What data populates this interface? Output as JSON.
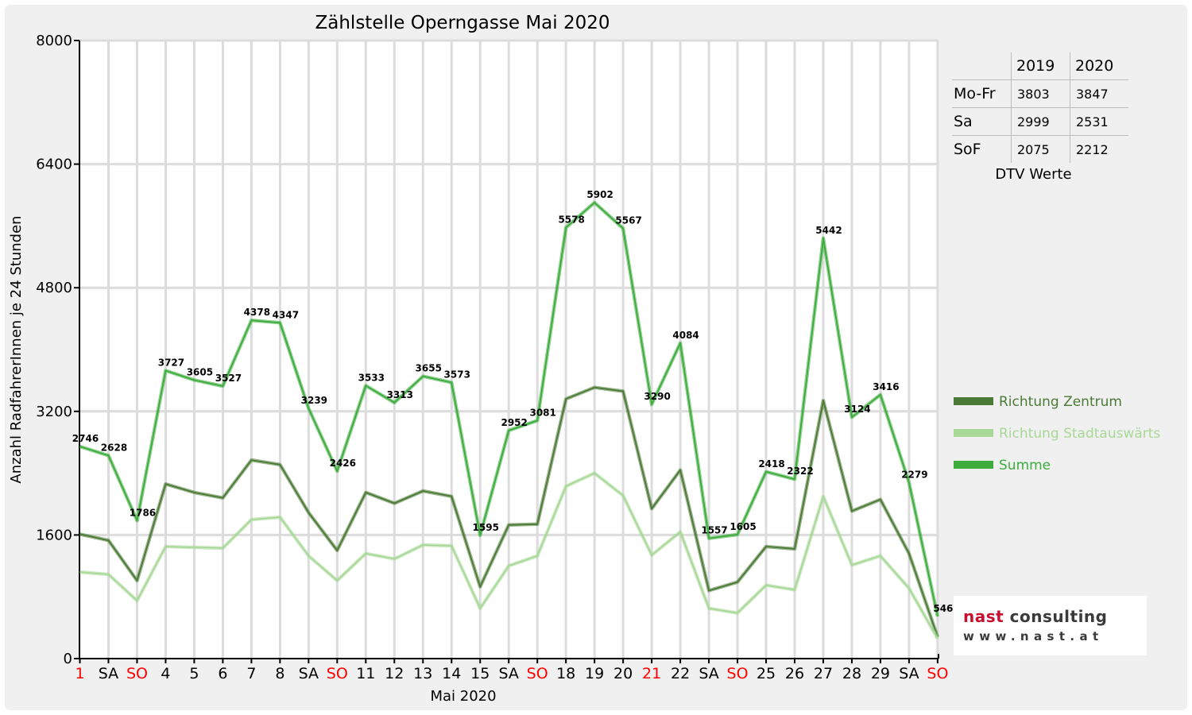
{
  "chart_data": {
    "type": "line",
    "title": "Zählstelle Operngasse Mai 2020",
    "xlabel": "Mai 2020",
    "ylabel": "Anzahl RadfahrerInnen je 24 Stunden",
    "ylim": [
      0,
      8000
    ],
    "yticks": [
      0,
      1600,
      3200,
      4800,
      6400,
      8000
    ],
    "grid": true,
    "legend_position": "right",
    "categories": [
      "1",
      "SA",
      "SO",
      "4",
      "5",
      "6",
      "7",
      "8",
      "SA",
      "SO",
      "11",
      "12",
      "13",
      "14",
      "15",
      "SA",
      "SO",
      "18",
      "19",
      "20",
      "21",
      "22",
      "SA",
      "SO",
      "25",
      "26",
      "27",
      "28",
      "29",
      "SA",
      "SO"
    ],
    "category_colors": [
      "#ff0000",
      "#000000",
      "#ff0000",
      "#000000",
      "#000000",
      "#000000",
      "#000000",
      "#000000",
      "#000000",
      "#ff0000",
      "#000000",
      "#000000",
      "#000000",
      "#000000",
      "#000000",
      "#000000",
      "#ff0000",
      "#000000",
      "#000000",
      "#000000",
      "#ff0000",
      "#000000",
      "#000000",
      "#ff0000",
      "#000000",
      "#000000",
      "#000000",
      "#000000",
      "#000000",
      "#000000",
      "#ff0000"
    ],
    "series": [
      {
        "name": "Richtung Zentrum",
        "color": "#4a7a35",
        "values": [
          1610,
          1530,
          1010,
          2260,
          2150,
          2080,
          2570,
          2510,
          1890,
          1400,
          2150,
          2010,
          2170,
          2100,
          930,
          1730,
          1740,
          3360,
          3510,
          3460,
          1940,
          2440,
          880,
          990,
          1450,
          1420,
          3340,
          1910,
          2060,
          1360,
          280
        ]
      },
      {
        "name": "Richtung Stadtauswärts",
        "color": "#a8d898",
        "values": [
          1120,
          1090,
          750,
          1450,
          1440,
          1430,
          1800,
          1830,
          1330,
          1010,
          1360,
          1290,
          1470,
          1460,
          650,
          1200,
          1330,
          2230,
          2400,
          2110,
          1340,
          1640,
          650,
          590,
          950,
          890,
          2100,
          1210,
          1330,
          910,
          260
        ]
      },
      {
        "name": "Summe",
        "color": "#3cac3c",
        "values": [
          2746,
          2628,
          1786,
          3727,
          3605,
          3527,
          4378,
          4347,
          3239,
          2426,
          3533,
          3313,
          3655,
          3573,
          1595,
          2952,
          3081,
          5578,
          5902,
          5567,
          3290,
          4084,
          1557,
          1605,
          2418,
          2322,
          5442,
          3124,
          3416,
          2279,
          546
        ]
      }
    ],
    "data_labels": [
      "2746",
      "2628",
      "1786",
      "3727",
      "3605",
      "3527",
      "4378",
      "4347",
      "3239",
      "2426",
      "3533",
      "3313",
      "3655",
      "3573",
      "1595",
      "2952",
      "3081",
      "5578",
      "5902",
      "5567",
      "3290",
      "4084",
      "1557",
      "1605",
      "2418",
      "2322",
      "5442",
      "3124",
      "3416",
      "2279",
      "546"
    ]
  },
  "dtv_table": {
    "years": [
      "2019",
      "2020"
    ],
    "rows": [
      {
        "label": "Mo-Fr",
        "values": [
          "3803",
          "3847"
        ]
      },
      {
        "label": "Sa",
        "values": [
          "2999",
          "2531"
        ]
      },
      {
        "label": "SoF",
        "values": [
          "2075",
          "2212"
        ]
      }
    ],
    "caption": "DTV Werte"
  },
  "logo": {
    "name_part1": "nast",
    "name_part2": "consulting",
    "url": "www.nast.at"
  }
}
